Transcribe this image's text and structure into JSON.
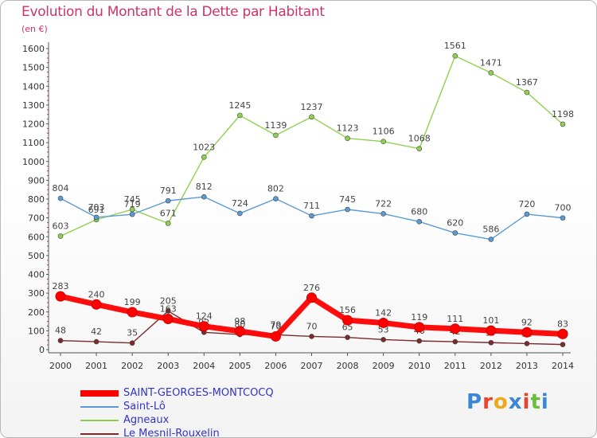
{
  "page": {
    "title": "Evolution du Montant de la Dette par Habitant",
    "subtitle": "(en €)",
    "brand": "Proxiti",
    "brand_colors": [
      "#3a87d6",
      "#e8432c",
      "#f2a71b",
      "#3a87d6",
      "#e8432c",
      "#6abf3a",
      "#3a87d6"
    ]
  },
  "chart_data": {
    "type": "line",
    "title": "Evolution du Montant de la Dette par Habitant",
    "subtitle": "(en €)",
    "x": [
      2000,
      2001,
      2002,
      2003,
      2004,
      2005,
      2006,
      2007,
      2008,
      2009,
      2010,
      2011,
      2012,
      2013,
      2014
    ],
    "ylim": [
      0,
      1600
    ],
    "yticks": [
      0,
      100,
      200,
      300,
      400,
      500,
      600,
      700,
      800,
      900,
      1000,
      1100,
      1200,
      1300,
      1400,
      1500,
      1600
    ],
    "grid": false,
    "legend_position": "bottom-left",
    "series": [
      {
        "name": "Agneaux",
        "color": "#8fd14f",
        "values": [
          603,
          691,
          745,
          671,
          1023,
          1245,
          1139,
          1237,
          1123,
          1106,
          1068,
          1561,
          1471,
          1367,
          1198
        ],
        "labels": [
          "603",
          "691",
          "745",
          "671",
          "1023",
          "1245",
          "1139",
          "1237",
          "1123",
          "1106",
          "1068",
          "1561",
          "1471",
          "1367",
          "1198"
        ]
      },
      {
        "name": "Saint-Lô",
        "color": "#5b9bd5",
        "values": [
          804,
          703,
          719,
          791,
          812,
          724,
          802,
          711,
          745,
          722,
          680,
          620,
          586,
          720,
          700
        ],
        "labels": [
          "804",
          "703",
          "719",
          "791",
          "812",
          "724",
          "802",
          "711",
          "745",
          "722",
          "680",
          "620",
          "586",
          "720",
          "700"
        ]
      },
      {
        "name": "Le Mesnil-Rouxelin",
        "color": "#7a2a2a",
        "values": [
          48,
          42,
          35,
          205,
          92,
          80,
          79,
          70,
          65,
          53,
          46,
          42,
          37,
          32,
          27
        ],
        "labels": [
          "48",
          "42",
          "35",
          "205",
          "92",
          "80",
          "79",
          "70",
          "65",
          "53",
          "46",
          "42",
          "37",
          "32",
          "27"
        ]
      },
      {
        "name": "SAINT-GEORGES-MONTCOCQ",
        "color": "#ff0000",
        "values": [
          283,
          240,
          199,
          163,
          124,
          98,
          70,
          276,
          156,
          142,
          119,
          111,
          101,
          92,
          83
        ],
        "labels": [
          "283",
          "240",
          "199",
          "163",
          "124",
          "98",
          "70",
          "276",
          "156",
          "142",
          "119",
          "111",
          "101",
          "92",
          "83"
        ]
      }
    ],
    "legend": [
      {
        "name": "SAINT-GEORGES-MONTCOCQ",
        "color": "#ff0000",
        "text_color": "#3333cc"
      },
      {
        "name": "Saint-Lô",
        "color": "#5b9bd5",
        "text_color": "#3333cc"
      },
      {
        "name": "Agneaux",
        "color": "#8fd14f",
        "text_color": "#3333cc"
      },
      {
        "name": "Le Mesnil-Rouxelin",
        "color": "#7a2a2a",
        "text_color": "#3333cc"
      }
    ]
  }
}
